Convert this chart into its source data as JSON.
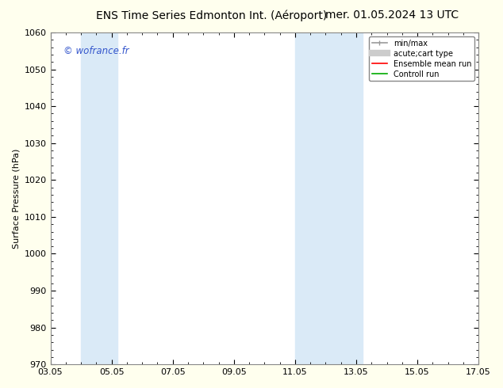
{
  "title_left": "ENS Time Series Edmonton Int. (Aéroport)",
  "title_right": "mer. 01.05.2024 13 UTC",
  "ylabel": "Surface Pressure (hPa)",
  "ylim": [
    970,
    1060
  ],
  "yticks": [
    970,
    980,
    990,
    1000,
    1010,
    1020,
    1030,
    1040,
    1050,
    1060
  ],
  "xlim": [
    3,
    17
  ],
  "xtick_labels": [
    "03.05",
    "05.05",
    "07.05",
    "09.05",
    "11.05",
    "13.05",
    "15.05",
    "17.05"
  ],
  "xtick_positions": [
    3,
    5,
    7,
    9,
    11,
    13,
    15,
    17
  ],
  "shaded_bands": [
    {
      "x_start": 4.0,
      "x_end": 5.2,
      "color": "#daeaf7"
    },
    {
      "x_start": 11.0,
      "x_end": 13.2,
      "color": "#daeaf7"
    }
  ],
  "copyright_text": "© wofrance.fr",
  "copyright_color": "#3355cc",
  "background_color": "#ffffee",
  "plot_bg_color": "#ffffff",
  "border_color": "#888888",
  "legend_items": [
    {
      "label": "min/max",
      "color": "#999999",
      "lw": 1.2
    },
    {
      "label": "acute;cart type",
      "color": "#cccccc",
      "lw": 6
    },
    {
      "label": "Ensemble mean run",
      "color": "#ff0000",
      "lw": 1.2
    },
    {
      "label": "Controll run",
      "color": "#00aa00",
      "lw": 1.2
    }
  ],
  "title_fontsize": 10,
  "label_fontsize": 8,
  "tick_fontsize": 8,
  "legend_fontsize": 7
}
